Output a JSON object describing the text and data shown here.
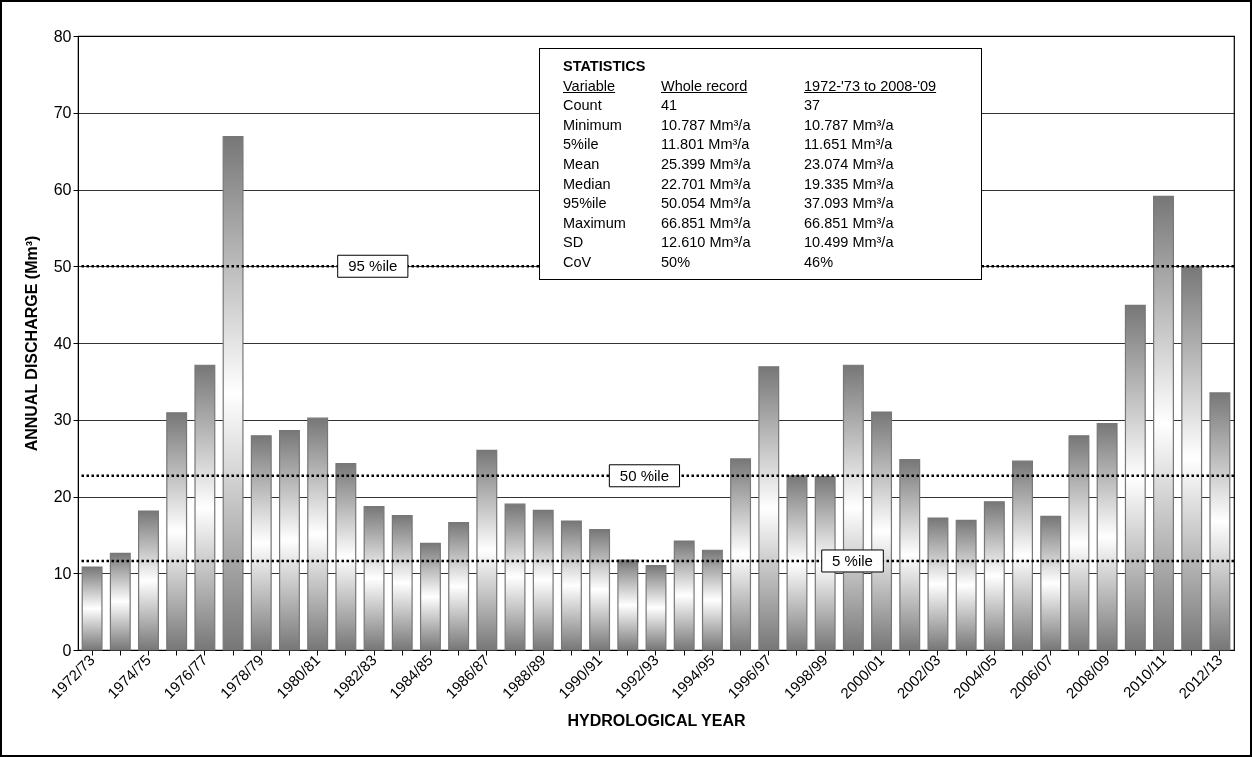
{
  "chart_data": {
    "type": "bar",
    "xlabel": "HYDROLOGICAL  YEAR",
    "ylabel": "ANNUAL  DISCHARGE  (Mm³)",
    "categories": [
      "1972/73",
      null,
      "1974/75",
      null,
      "1976/77",
      null,
      "1978/79",
      null,
      "1980/81",
      null,
      "1982/83",
      null,
      "1984/85",
      null,
      "1986/87",
      null,
      "1988/89",
      null,
      "1990/91",
      null,
      "1992/93",
      null,
      "1994/95",
      null,
      "1996/97",
      null,
      "1998/99",
      null,
      "2000/01",
      null,
      "2002/03",
      null,
      "2004/05",
      null,
      "2006/07",
      null,
      "2008/09",
      null,
      "2010/11",
      null,
      "2012/13"
    ],
    "series": [
      {
        "color": "#777777",
        "values": [
          10.8,
          12.6,
          18.1,
          30.9,
          37.1,
          66.9,
          27.9,
          28.6,
          30.2,
          24.3,
          18.7,
          17.5,
          13.9,
          16.6,
          26.0,
          19.0,
          18.2,
          16.8,
          15.7,
          11.7,
          11.0,
          14.2,
          13.0,
          24.9,
          36.9,
          22.7,
          22.6,
          37.1,
          31.0,
          24.8,
          17.2,
          16.9,
          19.3,
          24.6,
          17.4,
          27.9,
          29.5,
          44.9,
          59.1,
          50.0,
          33.5
        ]
      }
    ],
    "ylim": [
      0,
      80
    ],
    "yticks": [
      0,
      10,
      20,
      30,
      40,
      50,
      60,
      70,
      80
    ],
    "grid": "y",
    "ref_lines": [
      {
        "axis": "y",
        "value": 50.0,
        "label": "95 %ile",
        "line_style": "dotted"
      },
      {
        "axis": "y",
        "value": 22.7,
        "label": "50 %ile",
        "line_style": "dotted"
      },
      {
        "axis": "y",
        "value": 11.6,
        "label": "5 %ile",
        "line_style": "dotted"
      }
    ],
    "annotations": [
      "STATISTICS",
      "Variable",
      "Whole record",
      "1972-'73 to 2008-'09",
      "Count",
      "41",
      "37",
      "Minimum",
      "10.787 Mm³/a",
      "10.787 Mm³/a",
      "5%ile",
      "11.801 Mm³/a",
      "11.651 Mm³/a",
      "Mean",
      "25.399 Mm³/a",
      "23.074 Mm³/a",
      "Median",
      "22.701 Mm³/a",
      "19.335 Mm³/a",
      "95%ile",
      "50.054 Mm³/a",
      "37.093 Mm³/a",
      "Maximum",
      "66.851 Mm³/a",
      "66.851 Mm³/a",
      "SD",
      "12.610 Mm³/a",
      "10.499 Mm³/a",
      "CoV",
      "50%",
      "46%"
    ]
  }
}
